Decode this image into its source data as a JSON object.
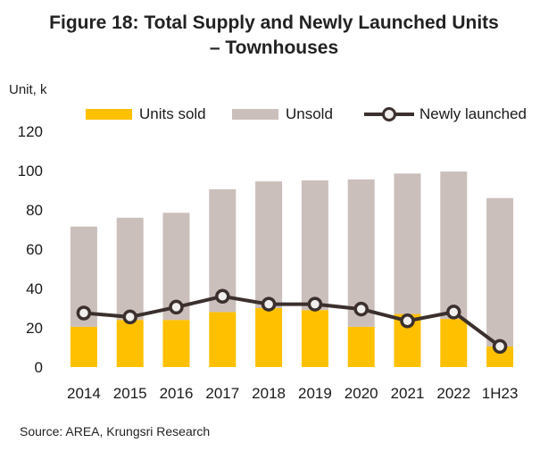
{
  "title_line1": "Figure 18: Total Supply and Newly Launched Units",
  "title_line2": "– Townhouses",
  "unit_label": "Unit, k",
  "source": "Source:   AREA, Krungsri Research",
  "colors": {
    "sold": "#ffc000",
    "unsold": "#cbbfbc",
    "line": "#3b302d",
    "marker_fill": "#f1efee"
  },
  "chart_data": {
    "type": "bar",
    "stacked": true,
    "title": "Figure 18: Total Supply and Newly Launched Units – Townhouses",
    "ylabel": "Unit, k",
    "ylim": [
      0,
      120
    ],
    "yticks": [
      "0",
      "20",
      "40",
      "60",
      "80",
      "100",
      "120"
    ],
    "grid": false,
    "legend_position": "top",
    "categories": [
      "2014",
      "2015",
      "2016",
      "2017",
      "2018",
      "2019",
      "2020",
      "2021",
      "2022",
      "1H23"
    ],
    "series": [
      {
        "name": "Units sold",
        "type": "bar",
        "values": [
          20.5,
          24,
          24,
          28,
          30,
          29,
          20.5,
          27,
          24.5,
          10.5
        ]
      },
      {
        "name": "Unsold",
        "type": "bar",
        "values": [
          51,
          52,
          54.5,
          62.5,
          64.5,
          66,
          75,
          71.5,
          75,
          75.5
        ]
      },
      {
        "name": "Newly launched",
        "type": "line",
        "values": [
          27.5,
          25.5,
          30.5,
          36,
          32,
          32,
          29.5,
          23.5,
          28,
          10.5
        ]
      }
    ]
  }
}
